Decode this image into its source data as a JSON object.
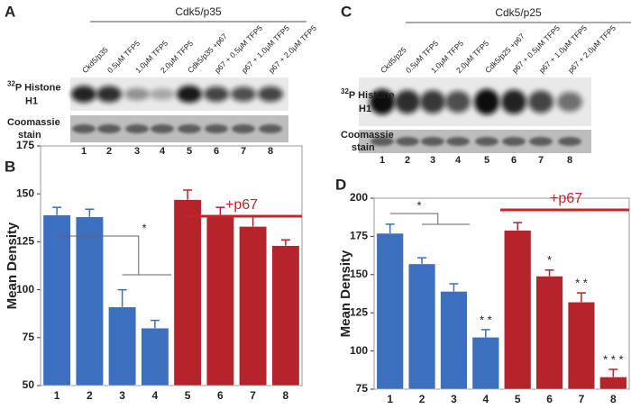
{
  "blots": [
    {
      "panel": "A",
      "header": "Cdk5/p35",
      "lanes": [
        "Ckd5/p35",
        "0.5μM TFP5",
        "1.0μM TFP5",
        "2.0μM TFP5",
        "Cdk5/p35 +p67",
        "p67 + 0.5μM TFP5",
        "p67 + 1.0μM TFP5",
        "p67 + 2.0μM TFP5"
      ],
      "isotope": "32",
      "label_lines": [
        "P Histone",
        "H1"
      ],
      "stain_lines": [
        "Coomassie",
        "stain"
      ],
      "lane_numbers": [
        1,
        2,
        3,
        4,
        5,
        6,
        7,
        8
      ]
    },
    {
      "panel": "C",
      "header": "Cdk5/p25",
      "lanes": [
        "Ckd5/p25",
        "0.5μM TFP5",
        "1.0μM TFP5",
        "2.0μM TFP5",
        "Cdk5/p25 +p67",
        "p67 + 0.5μM TFP5",
        "p67 + 1.0μM TFP5",
        "p67 + 2.0μM TFP5"
      ],
      "isotope": "32",
      "label_lines": [
        "P Histone",
        "H1"
      ],
      "stain_lines": [
        "Coomassie",
        "stain"
      ],
      "lane_numbers": [
        1,
        2,
        3,
        4,
        5,
        6,
        7,
        8
      ]
    }
  ],
  "chart_data": [
    {
      "type": "bar",
      "panel": "B",
      "y_label": "Mean Density",
      "categories": [
        "1",
        "2",
        "3",
        "4",
        "5",
        "6",
        "7",
        "8"
      ],
      "values": [
        139,
        138,
        91,
        80,
        147,
        138,
        133,
        123
      ],
      "errors": [
        4,
        4,
        9,
        4,
        5,
        5,
        5,
        3
      ],
      "colors": [
        "#3d6fbf",
        "#3d6fbf",
        "#3d6fbf",
        "#3d6fbf",
        "#b5232b",
        "#b5232b",
        "#b5232b",
        "#b5232b"
      ],
      "ylim": [
        50,
        175
      ],
      "yticks": [
        50,
        75,
        100,
        125,
        150,
        175
      ],
      "annotations": [
        "*",
        "+p67"
      ]
    },
    {
      "type": "bar",
      "panel": "D",
      "y_label": "Mean Density",
      "categories": [
        "1",
        "2",
        "3",
        "4",
        "5",
        "6",
        "7",
        "8"
      ],
      "values": [
        177,
        157,
        139,
        109,
        179,
        149,
        132,
        83
      ],
      "errors": [
        6,
        4,
        5,
        5,
        5,
        4,
        6,
        5
      ],
      "colors": [
        "#3d6fbf",
        "#3d6fbf",
        "#3d6fbf",
        "#3d6fbf",
        "#b5232b",
        "#b5232b",
        "#b5232b",
        "#b5232b"
      ],
      "ylim": [
        75,
        200
      ],
      "yticks": [
        75,
        100,
        125,
        150,
        175,
        200
      ],
      "significance": [
        null,
        null,
        null,
        "* *",
        null,
        "*",
        "* *",
        "* * *"
      ],
      "annotations": [
        "*",
        "+p67"
      ]
    }
  ]
}
